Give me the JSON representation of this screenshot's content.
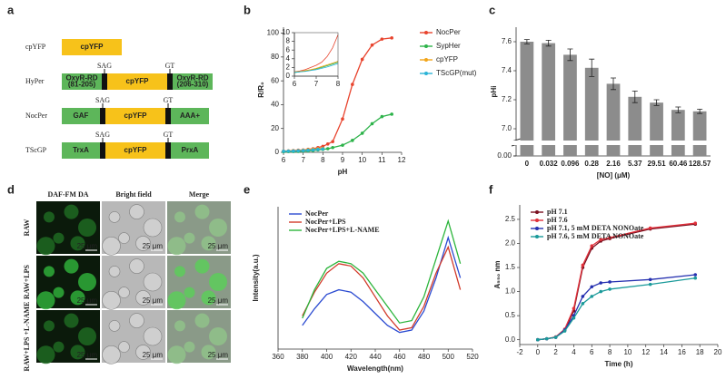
{
  "panel_labels": [
    "a",
    "b",
    "c",
    "d",
    "e",
    "f"
  ],
  "constructs": [
    {
      "name": "cpYFP",
      "domains": [
        [
          "cpYFP"
        ]
      ],
      "linkers": []
    },
    {
      "name": "HyPer",
      "domains": [
        [
          "OxyR-RD",
          "(81-205)"
        ],
        [
          "cpYFP"
        ],
        [
          "OxyR-RD",
          "(206-310)"
        ]
      ],
      "linkers": [
        "SAG",
        "GT"
      ]
    },
    {
      "name": "NocPer",
      "domains": [
        [
          "GAF"
        ],
        [
          "cpYFP"
        ],
        [
          "AAA+"
        ]
      ],
      "linkers": [
        "SAG",
        "GT"
      ]
    },
    {
      "name": "TScGP",
      "domains": [
        [
          "TrxA"
        ],
        [
          "cpYFP"
        ],
        [
          "PrxA"
        ]
      ],
      "linkers": [
        "SAG",
        "GT"
      ]
    }
  ],
  "microscopy": {
    "columns": [
      "DAF-FM DA",
      "Bright field",
      "Merge"
    ],
    "rows": [
      "RAW",
      "RAW+LPS",
      "RAW+LPS +L-NAME"
    ],
    "scale_bar": "25 μm"
  },
  "chart_data": [
    {
      "type": "line",
      "markers": true,
      "xlabel": "pH",
      "ylabel": "R/R₀",
      "x": [
        6,
        6.25,
        6.5,
        6.75,
        7,
        7.25,
        7.5,
        7.75,
        8,
        8.25,
        8.5,
        9,
        9.5,
        10,
        10.5,
        11,
        11.5
      ],
      "xlim": [
        6,
        12
      ],
      "xticks": [
        6,
        7,
        8,
        9,
        10,
        11,
        12
      ],
      "ylim": [
        0,
        105
      ],
      "yticks": [
        0,
        20,
        40,
        60,
        80,
        100
      ],
      "legend": "right",
      "series": [
        {
          "name": "NocPer",
          "color": "#e8442e",
          "values": [
            1,
            1.2,
            1.5,
            1.8,
            2,
            2.5,
            3,
            4,
            5,
            7,
            9,
            28,
            57,
            78,
            90,
            95,
            96
          ]
        },
        {
          "name": "SypHer",
          "color": "#2db34a",
          "values": [
            0.5,
            0.6,
            0.7,
            0.8,
            1,
            1.2,
            1.5,
            2,
            2.5,
            3,
            4,
            6,
            10,
            16,
            24,
            30,
            32
          ]
        },
        {
          "name": "cpYFP",
          "color": "#f2a51a",
          "values": [
            1,
            1.1,
            1.3,
            1.5,
            1.8,
            2.2,
            2.6,
            3,
            3.4,
            null,
            null,
            null,
            null,
            null,
            null,
            null,
            null
          ]
        },
        {
          "name": "TScGP(mut)",
          "color": "#2bb3d6",
          "values": [
            0.9,
            1,
            1.1,
            1.3,
            1.5,
            1.8,
            2.1,
            2.5,
            2.9,
            null,
            null,
            null,
            null,
            null,
            null,
            null,
            null
          ]
        }
      ]
    },
    {
      "type": "line",
      "markers": false,
      "x": [
        6,
        6.25,
        6.5,
        6.75,
        7,
        7.25,
        7.5,
        7.75,
        8
      ],
      "xlim": [
        6,
        8
      ],
      "xticks": [
        6,
        7,
        8
      ],
      "ylim": [
        0,
        10
      ],
      "yticks": [
        0,
        2,
        4,
        6,
        8,
        10
      ],
      "series": [
        {
          "color": "#e8442e",
          "values": [
            1,
            1.2,
            1.5,
            2,
            2.5,
            3.2,
            4.5,
            6.5,
            9.5
          ]
        },
        {
          "color": "#2db34a",
          "values": [
            0.8,
            1,
            1.2,
            1.4,
            1.7,
            2,
            2.4,
            2.8,
            3.2
          ]
        },
        {
          "color": "#f2a51a",
          "values": [
            1,
            1.1,
            1.3,
            1.5,
            1.8,
            2.2,
            2.6,
            3,
            3.4
          ]
        },
        {
          "color": "#2bb3d6",
          "values": [
            0.9,
            1,
            1.1,
            1.3,
            1.5,
            1.8,
            2.1,
            2.5,
            2.9
          ]
        }
      ]
    },
    {
      "type": "bar",
      "xlabel": "[NO] (μM)",
      "ylabel": "pHi",
      "color": "#8c8c8c",
      "categories": [
        "0",
        "0.032",
        "0.096",
        "0.28",
        "2.16",
        "5.37",
        "29.51",
        "60.46",
        "128.57"
      ],
      "values": [
        7.6,
        7.59,
        7.51,
        7.42,
        7.31,
        7.22,
        7.18,
        7.13,
        7.12
      ],
      "errors": [
        0.015,
        0.02,
        0.04,
        0.06,
        0.04,
        0.04,
        0.02,
        0.02,
        0.015
      ],
      "ylim": [
        6.95,
        7.7
      ],
      "yticks": [
        {
          "value": 7,
          "label": "7.0"
        },
        7.2,
        7.4,
        7.6
      ],
      "break_tick": {
        "value": 0,
        "label": "0.00"
      }
    },
    {
      "type": "line",
      "markers": false,
      "xlabel": "Wavelength(nm)",
      "ylabel": "Intensity(a.u.)",
      "x": [
        380,
        390,
        400,
        410,
        420,
        430,
        440,
        450,
        460,
        470,
        480,
        490,
        500,
        510
      ],
      "xlim": [
        360,
        520
      ],
      "xticks": [
        360,
        380,
        400,
        420,
        440,
        460,
        480,
        500,
        520
      ],
      "ylim": [
        400,
        1000
      ],
      "legend": "upper left",
      "series": [
        {
          "name": "NocPer",
          "color": "#2b4bd1",
          "values": [
            500,
            570,
            630,
            650,
            640,
            600,
            550,
            500,
            470,
            480,
            560,
            700,
            870,
            700
          ]
        },
        {
          "name": "NocPer+LPS",
          "color": "#d23a2a",
          "values": [
            540,
            640,
            720,
            760,
            750,
            700,
            620,
            540,
            480,
            490,
            580,
            720,
            830,
            650
          ]
        },
        {
          "name": "NocPer+LPS+L-NAME",
          "color": "#2cb53c",
          "values": [
            530,
            650,
            740,
            770,
            760,
            720,
            650,
            580,
            510,
            520,
            620,
            780,
            940,
            760
          ]
        }
      ]
    },
    {
      "type": "line",
      "markers": true,
      "xlabel": "Time (h)",
      "ylabel": "A₅₅₀ nm",
      "x": [
        0,
        1,
        2,
        3,
        4,
        5,
        6,
        7,
        8,
        12.5,
        17.5
      ],
      "xlim": [
        -2,
        20
      ],
      "xticks": [
        -2,
        0,
        2,
        4,
        6,
        8,
        10,
        12,
        14,
        16,
        18,
        20
      ],
      "ylim": [
        -0.1,
        2.8
      ],
      "yticks": [
        {
          "value": 0,
          "label": "0.0"
        },
        0.5,
        {
          "value": 1,
          "label": "1.0"
        },
        1.5,
        {
          "value": 2,
          "label": "2.0"
        },
        2.5
      ],
      "legend": "upper left",
      "series": [
        {
          "name": "pH 7.1",
          "color": "#7a1020",
          "values": [
            0,
            0.02,
            0.05,
            0.2,
            0.6,
            1.5,
            1.9,
            2.05,
            2.1,
            2.3,
            2.4
          ]
        },
        {
          "name": "pH 7.6",
          "color": "#e0303a",
          "values": [
            0,
            0.02,
            0.06,
            0.22,
            0.65,
            1.55,
            1.95,
            2.08,
            2.12,
            2.32,
            2.42
          ]
        },
        {
          "name": "pH 7.1, 5 mM DETA NONOate",
          "color": "#2530b0",
          "values": [
            0,
            0.02,
            0.05,
            0.2,
            0.5,
            0.9,
            1.1,
            1.18,
            1.2,
            1.25,
            1.35
          ]
        },
        {
          "name": "pH 7.6, 5 mM DETA NONOate",
          "color": "#1a9a9a",
          "values": [
            0,
            0.02,
            0.05,
            0.18,
            0.45,
            0.75,
            0.9,
            1,
            1.05,
            1.15,
            1.28
          ]
        }
      ]
    }
  ]
}
